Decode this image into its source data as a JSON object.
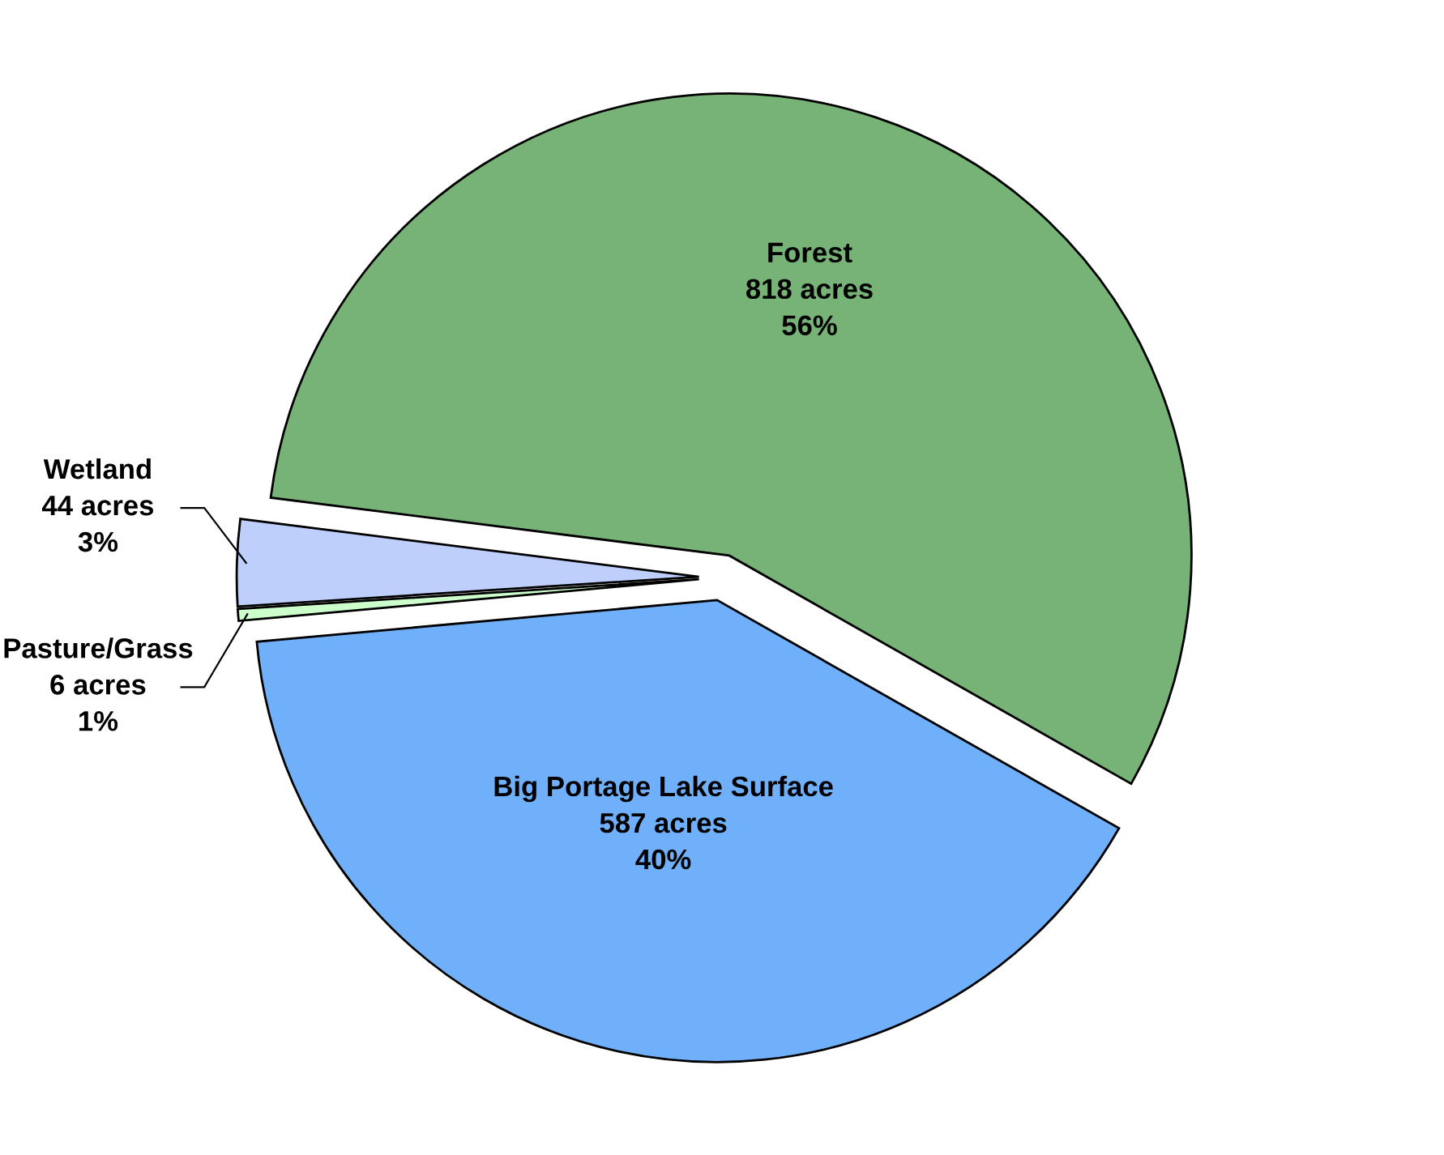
{
  "chart_data": {
    "type": "pie",
    "categories": [
      "Forest",
      "Big Portage Lake Surface",
      "Pasture/Grass",
      "Wetland"
    ],
    "values": [
      818,
      587,
      6,
      44
    ],
    "value_labels": [
      "818 acres\n56%",
      "587 acres\n40%",
      "6 acres\n1%",
      "44 acres\n3%"
    ],
    "colors": [
      "#77b277",
      "#70b0fa",
      "#ccffcc",
      "#bfcffc"
    ],
    "legend": false
  }
}
